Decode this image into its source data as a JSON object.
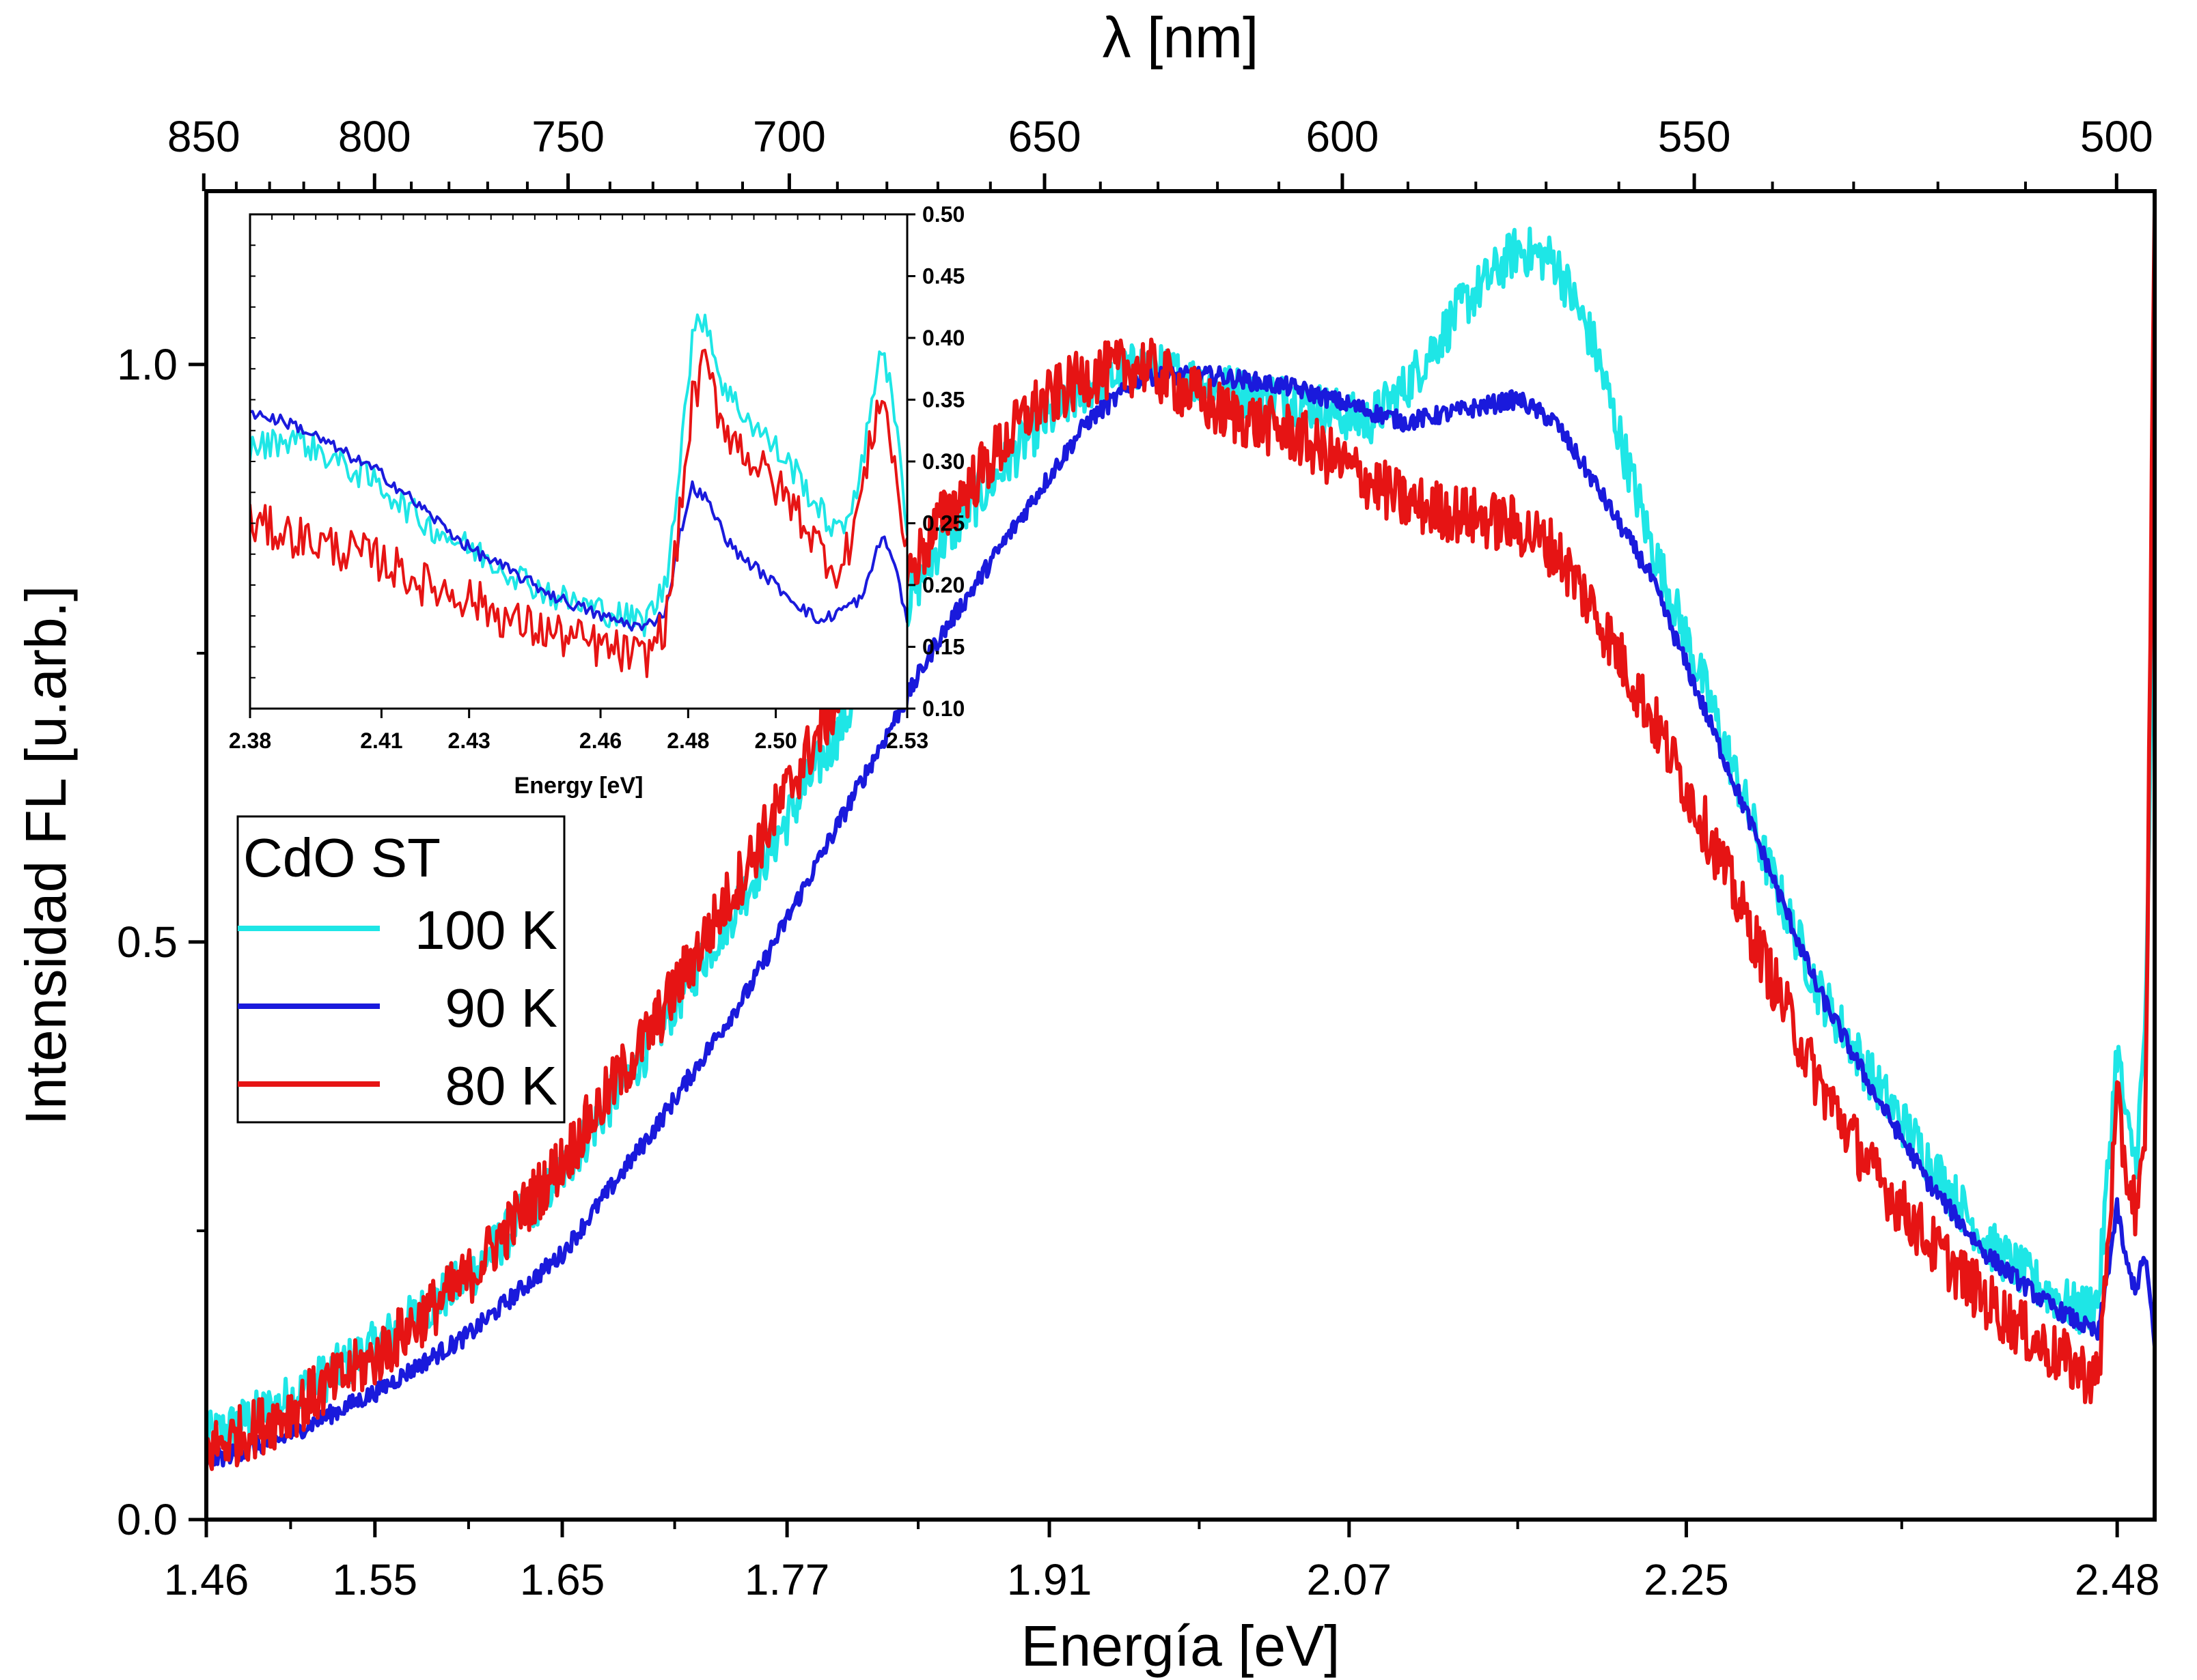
{
  "chart_data": [
    {
      "type": "line",
      "xlabel": "Energía [eV]",
      "ylabel": "Intensidad FL [u.arb.]",
      "top_axis_label": "λ [nm]",
      "xlim": [
        1.46,
        2.5
      ],
      "ylim": [
        0.0,
        1.15
      ],
      "x_tick_labels": [
        "1.46",
        "1.55",
        "1.65",
        "1.77",
        "1.91",
        "2.07",
        "2.25",
        "2.48"
      ],
      "x_tick_values": [
        1.46,
        1.55,
        1.65,
        1.77,
        1.91,
        2.07,
        2.25,
        2.48
      ],
      "y_tick_labels": [
        "0.0",
        "0.5",
        "1.0"
      ],
      "y_tick_values": [
        0.0,
        0.5,
        1.0
      ],
      "top_tick_labels": [
        "850",
        "800",
        "750",
        "700",
        "650",
        "600",
        "550",
        "500"
      ],
      "top_tick_values": [
        850,
        800,
        750,
        700,
        650,
        600,
        550,
        500
      ],
      "legend_title": "CdO ST",
      "legend_placement": "left",
      "series": [
        {
          "name": "100 K",
          "color": "#1ee6e6",
          "x": [
            1.46,
            1.5,
            1.55,
            1.6,
            1.65,
            1.7,
            1.75,
            1.8,
            1.85,
            1.9,
            1.93,
            1.96,
            2.0,
            2.04,
            2.08,
            2.1,
            2.13,
            2.16,
            2.18,
            2.2,
            2.23,
            2.26,
            2.29,
            2.32,
            2.35,
            2.38,
            2.41,
            2.44,
            2.46,
            2.47,
            2.48,
            2.485,
            2.49,
            2.495,
            2.5
          ],
          "y": [
            0.07,
            0.1,
            0.15,
            0.21,
            0.3,
            0.42,
            0.55,
            0.69,
            0.84,
            0.94,
            0.98,
            1.0,
            0.98,
            0.97,
            0.95,
            0.98,
            1.05,
            1.1,
            1.09,
            1.02,
            0.85,
            0.72,
            0.58,
            0.46,
            0.38,
            0.31,
            0.24,
            0.2,
            0.18,
            0.19,
            0.41,
            0.34,
            0.31,
            0.42,
            0.85
          ]
        },
        {
          "name": "90 K",
          "color": "#1a1adc",
          "x": [
            1.46,
            1.5,
            1.55,
            1.6,
            1.65,
            1.7,
            1.75,
            1.8,
            1.85,
            1.9,
            1.93,
            1.96,
            2.0,
            2.04,
            2.08,
            2.1,
            2.13,
            2.16,
            2.18,
            2.2,
            2.23,
            2.26,
            2.29,
            2.32,
            2.35,
            2.38,
            2.41,
            2.44,
            2.46,
            2.47,
            2.48,
            2.485,
            2.49,
            2.495,
            2.5
          ],
          "y": [
            0.05,
            0.07,
            0.11,
            0.16,
            0.23,
            0.34,
            0.46,
            0.61,
            0.76,
            0.88,
            0.95,
            0.99,
            0.99,
            0.98,
            0.96,
            0.95,
            0.96,
            0.97,
            0.95,
            0.9,
            0.82,
            0.7,
            0.58,
            0.46,
            0.37,
            0.29,
            0.23,
            0.19,
            0.17,
            0.16,
            0.27,
            0.22,
            0.2,
            0.23,
            0.15
          ]
        },
        {
          "name": "80 K",
          "color": "#e61414",
          "x": [
            1.46,
            1.5,
            1.55,
            1.6,
            1.65,
            1.7,
            1.75,
            1.8,
            1.85,
            1.9,
            1.93,
            1.96,
            2.0,
            2.04,
            2.08,
            2.1,
            2.13,
            2.16,
            2.18,
            2.2,
            2.23,
            2.26,
            2.29,
            2.32,
            2.35,
            2.38,
            2.41,
            2.44,
            2.46,
            2.47,
            2.48,
            2.485,
            2.49,
            2.495,
            2.5
          ],
          "y": [
            0.06,
            0.09,
            0.14,
            0.21,
            0.31,
            0.43,
            0.57,
            0.72,
            0.86,
            0.96,
            0.99,
            1.0,
            0.96,
            0.94,
            0.9,
            0.88,
            0.87,
            0.86,
            0.84,
            0.79,
            0.7,
            0.6,
            0.49,
            0.38,
            0.3,
            0.24,
            0.19,
            0.15,
            0.13,
            0.12,
            0.36,
            0.3,
            0.27,
            0.31,
            1.15
          ]
        }
      ]
    },
    {
      "type": "line",
      "xlabel": "Energy [eV]",
      "ylabel": "",
      "xlim": [
        2.38,
        2.53
      ],
      "ylim": [
        0.1,
        0.5
      ],
      "x_tick_labels": [
        "2.38",
        "2.41",
        "2.43",
        "2.46",
        "2.48",
        "2.50",
        "2.53"
      ],
      "x_tick_values": [
        2.38,
        2.41,
        2.43,
        2.46,
        2.48,
        2.5,
        2.53
      ],
      "y_tick_labels": [
        "0.10",
        "0.15",
        "0.20",
        "0.25",
        "0.30",
        "0.35",
        "0.40",
        "0.45",
        "0.50"
      ],
      "y_tick_values": [
        0.1,
        0.15,
        0.2,
        0.25,
        0.3,
        0.35,
        0.4,
        0.45,
        0.5
      ],
      "y_axis_side": "right",
      "series": [
        {
          "name": "100 K",
          "color": "#1ee6e6",
          "x": [
            2.38,
            2.39,
            2.4,
            2.41,
            2.42,
            2.43,
            2.44,
            2.45,
            2.46,
            2.465,
            2.47,
            2.475,
            2.478,
            2.481,
            2.484,
            2.487,
            2.49,
            2.495,
            2.5,
            2.505,
            2.51,
            2.515,
            2.52,
            2.524,
            2.527,
            2.53
          ],
          "y": [
            0.31,
            0.32,
            0.3,
            0.28,
            0.25,
            0.23,
            0.21,
            0.19,
            0.18,
            0.175,
            0.17,
            0.2,
            0.3,
            0.4,
            0.42,
            0.37,
            0.35,
            0.33,
            0.31,
            0.29,
            0.26,
            0.24,
            0.3,
            0.4,
            0.34,
            0.25
          ]
        },
        {
          "name": "90 K",
          "color": "#1a1adc",
          "x": [
            2.38,
            2.39,
            2.4,
            2.41,
            2.42,
            2.43,
            2.44,
            2.45,
            2.46,
            2.465,
            2.47,
            2.475,
            2.478,
            2.481,
            2.484,
            2.487,
            2.49,
            2.495,
            2.5,
            2.505,
            2.51,
            2.515,
            2.52,
            2.524,
            2.527,
            2.53
          ],
          "y": [
            0.34,
            0.33,
            0.31,
            0.29,
            0.26,
            0.23,
            0.21,
            0.19,
            0.175,
            0.17,
            0.165,
            0.18,
            0.24,
            0.28,
            0.27,
            0.25,
            0.23,
            0.215,
            0.2,
            0.185,
            0.17,
            0.18,
            0.19,
            0.24,
            0.22,
            0.17
          ]
        },
        {
          "name": "80 K",
          "color": "#e61414",
          "x": [
            2.38,
            2.39,
            2.4,
            2.41,
            2.42,
            2.43,
            2.44,
            2.45,
            2.46,
            2.465,
            2.47,
            2.475,
            2.478,
            2.481,
            2.484,
            2.487,
            2.49,
            2.495,
            2.5,
            2.505,
            2.51,
            2.515,
            2.52,
            2.524,
            2.527,
            2.53
          ],
          "y": [
            0.25,
            0.24,
            0.23,
            0.22,
            0.2,
            0.19,
            0.17,
            0.16,
            0.15,
            0.145,
            0.14,
            0.17,
            0.25,
            0.35,
            0.38,
            0.34,
            0.32,
            0.3,
            0.28,
            0.26,
            0.23,
            0.21,
            0.28,
            0.36,
            0.3,
            0.22
          ]
        }
      ]
    }
  ]
}
